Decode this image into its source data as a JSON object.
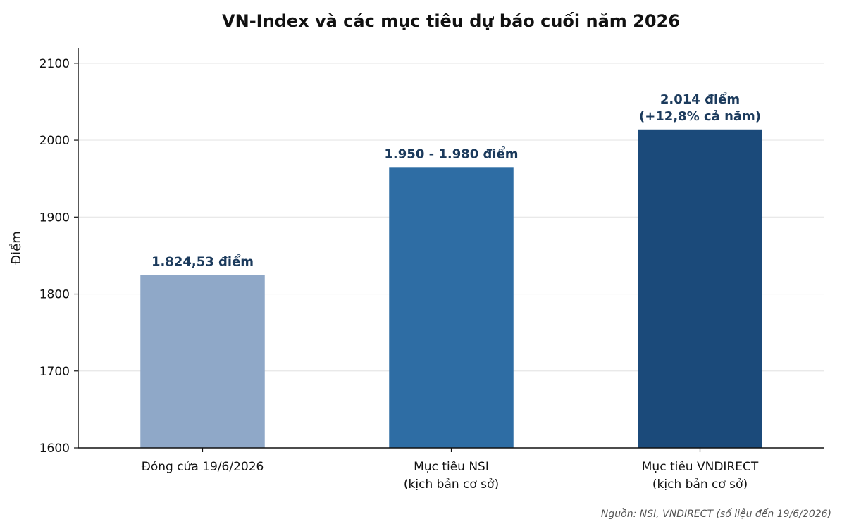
{
  "chart_data": {
    "type": "bar",
    "title": "VN-Index và các mục tiêu dự báo cuối năm 2026",
    "xlabel": "",
    "ylabel": "Điểm",
    "ylim": [
      1600,
      2120
    ],
    "yticks": [
      1600,
      1700,
      1800,
      1900,
      2000,
      2100
    ],
    "grid": "horizontal",
    "categories": [
      [
        "Đóng cửa 19/6/2026"
      ],
      [
        "Mục tiêu NSI",
        "(kịch bản cơ sở)"
      ],
      [
        "Mục tiêu VNDIRECT",
        "(kịch bản cơ sở)"
      ]
    ],
    "values": [
      1824.53,
      1965,
      2014
    ],
    "data_labels": [
      [
        "1.824,53 điểm"
      ],
      [
        "1.950 - 1.980 điểm"
      ],
      [
        "2.014 điểm",
        "(+12,8% cả năm)"
      ]
    ],
    "colors": [
      "#8fa8c8",
      "#2e6da4",
      "#1b4a7a"
    ],
    "label_color": "#1b3a5c",
    "source": "Nguồn: NSI, VNDIRECT (số liệu đến 19/6/2026)"
  }
}
